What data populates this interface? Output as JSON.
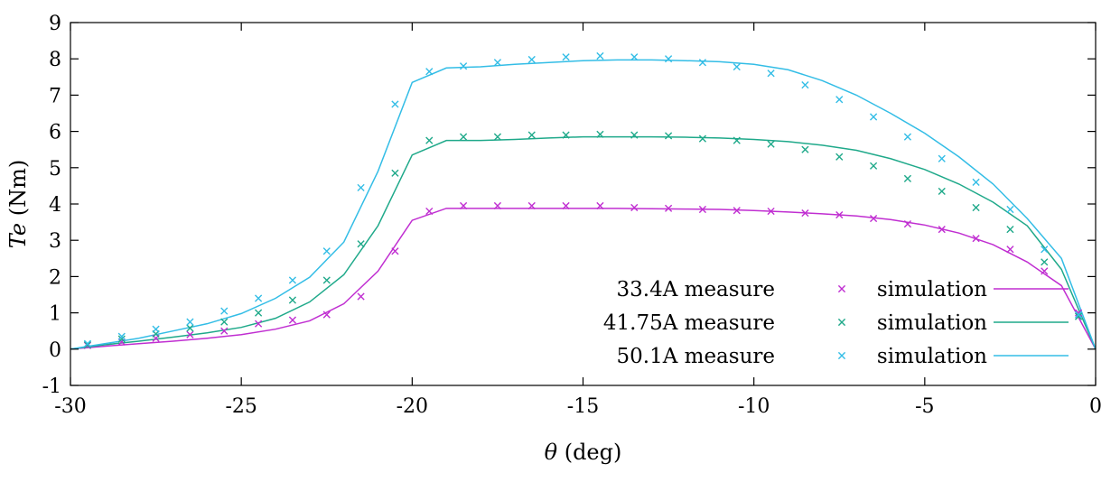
{
  "chart_data": {
    "type": "line",
    "xlabel_symbol": "θ",
    "xlabel_unit": " (deg)",
    "ylabel_symbol": "Te",
    "ylabel_unit": " (Nm)",
    "xlim": [
      -30,
      0
    ],
    "ylim": [
      -1,
      9
    ],
    "xticks": [
      -30,
      -25,
      -20,
      -15,
      -10,
      -5,
      0
    ],
    "yticks": [
      -1,
      0,
      1,
      2,
      3,
      4,
      5,
      6,
      7,
      8,
      9
    ],
    "legend_position": "bottom-right",
    "series": [
      {
        "name": "33.4A",
        "measure_label": "33.4A measure",
        "simulation_label": "simulation",
        "color": "#c02ed1",
        "measure": {
          "x": [
            -29.5,
            -28.5,
            -27.5,
            -26.5,
            -25.5,
            -24.5,
            -23.5,
            -22.5,
            -21.5,
            -20.5,
            -19.5,
            -18.5,
            -17.5,
            -16.5,
            -15.5,
            -14.5,
            -13.5,
            -12.5,
            -11.5,
            -10.5,
            -9.5,
            -8.5,
            -7.5,
            -6.5,
            -5.5,
            -4.5,
            -3.5,
            -2.5,
            -1.5,
            -0.5
          ],
          "y": [
            0.1,
            0.2,
            0.3,
            0.4,
            0.5,
            0.7,
            0.8,
            0.95,
            1.45,
            2.7,
            3.8,
            3.95,
            3.95,
            3.95,
            3.95,
            3.95,
            3.9,
            3.88,
            3.85,
            3.82,
            3.8,
            3.75,
            3.7,
            3.6,
            3.45,
            3.3,
            3.05,
            2.75,
            2.15,
            1.0
          ]
        },
        "simulation": {
          "x": [
            -30,
            -29,
            -28,
            -27,
            -26,
            -25,
            -24,
            -23,
            -22,
            -21,
            -20,
            -19,
            -18,
            -17,
            -16,
            -15,
            -14,
            -13,
            -12,
            -11,
            -10,
            -9,
            -8,
            -7,
            -6,
            -5,
            -4,
            -3,
            -2,
            -1,
            0
          ],
          "y": [
            0,
            0.08,
            0.15,
            0.22,
            0.3,
            0.4,
            0.55,
            0.78,
            1.25,
            2.15,
            3.55,
            3.88,
            3.88,
            3.88,
            3.88,
            3.88,
            3.88,
            3.87,
            3.86,
            3.85,
            3.82,
            3.78,
            3.73,
            3.67,
            3.57,
            3.42,
            3.2,
            2.88,
            2.4,
            1.75,
            0
          ]
        }
      },
      {
        "name": "41.75A",
        "measure_label": "41.75A measure",
        "simulation_label": "simulation",
        "color": "#1fa98a",
        "measure": {
          "x": [
            -29.5,
            -28.5,
            -27.5,
            -26.5,
            -25.5,
            -24.5,
            -23.5,
            -22.5,
            -21.5,
            -20.5,
            -19.5,
            -18.5,
            -17.5,
            -16.5,
            -15.5,
            -14.5,
            -13.5,
            -12.5,
            -11.5,
            -10.5,
            -9.5,
            -8.5,
            -7.5,
            -6.5,
            -5.5,
            -4.5,
            -3.5,
            -2.5,
            -1.5,
            -0.5
          ],
          "y": [
            0.12,
            0.28,
            0.42,
            0.58,
            0.75,
            1.0,
            1.35,
            1.9,
            2.9,
            4.85,
            5.75,
            5.85,
            5.85,
            5.9,
            5.9,
            5.92,
            5.9,
            5.88,
            5.8,
            5.75,
            5.65,
            5.5,
            5.3,
            5.05,
            4.7,
            4.35,
            3.9,
            3.3,
            2.4,
            0.9
          ]
        },
        "simulation": {
          "x": [
            -30,
            -29,
            -28,
            -27,
            -26,
            -25,
            -24,
            -23,
            -22,
            -21,
            -20,
            -19,
            -18,
            -17,
            -16,
            -15,
            -14,
            -13,
            -12,
            -11,
            -10,
            -9,
            -8,
            -7,
            -6,
            -5,
            -4,
            -3,
            -2,
            -1,
            0
          ],
          "y": [
            0,
            0.12,
            0.22,
            0.33,
            0.45,
            0.6,
            0.85,
            1.3,
            2.05,
            3.4,
            5.35,
            5.75,
            5.75,
            5.78,
            5.82,
            5.85,
            5.85,
            5.85,
            5.84,
            5.82,
            5.78,
            5.72,
            5.62,
            5.48,
            5.25,
            4.95,
            4.55,
            4.05,
            3.4,
            2.2,
            0
          ]
        }
      },
      {
        "name": "50.1A",
        "measure_label": "50.1A measure",
        "simulation_label": "simulation",
        "color": "#33bde6",
        "measure": {
          "x": [
            -29.5,
            -28.5,
            -27.5,
            -26.5,
            -25.5,
            -24.5,
            -23.5,
            -22.5,
            -21.5,
            -20.5,
            -19.5,
            -18.5,
            -17.5,
            -16.5,
            -15.5,
            -14.5,
            -13.5,
            -12.5,
            -11.5,
            -10.5,
            -9.5,
            -8.5,
            -7.5,
            -6.5,
            -5.5,
            -4.5,
            -3.5,
            -2.5,
            -1.5,
            -0.5
          ],
          "y": [
            0.15,
            0.35,
            0.55,
            0.75,
            1.05,
            1.4,
            1.9,
            2.7,
            4.45,
            6.75,
            7.65,
            7.8,
            7.9,
            7.98,
            8.05,
            8.08,
            8.05,
            8.0,
            7.9,
            7.78,
            7.6,
            7.28,
            6.88,
            6.4,
            5.85,
            5.25,
            4.6,
            3.85,
            2.75,
            0.95
          ]
        },
        "simulation": {
          "x": [
            -30,
            -29,
            -28,
            -27,
            -26,
            -25,
            -24,
            -23,
            -22,
            -21,
            -20,
            -19,
            -18,
            -17,
            -16,
            -15,
            -14,
            -13,
            -12,
            -11,
            -10,
            -9,
            -8,
            -7,
            -6,
            -5,
            -4,
            -3,
            -2,
            -1,
            0
          ],
          "y": [
            0,
            0.15,
            0.3,
            0.5,
            0.7,
            0.98,
            1.4,
            1.98,
            2.95,
            4.9,
            7.35,
            7.75,
            7.78,
            7.85,
            7.9,
            7.95,
            7.97,
            7.97,
            7.95,
            7.92,
            7.85,
            7.7,
            7.4,
            7.0,
            6.5,
            5.95,
            5.3,
            4.55,
            3.6,
            2.5,
            0
          ]
        }
      }
    ]
  }
}
